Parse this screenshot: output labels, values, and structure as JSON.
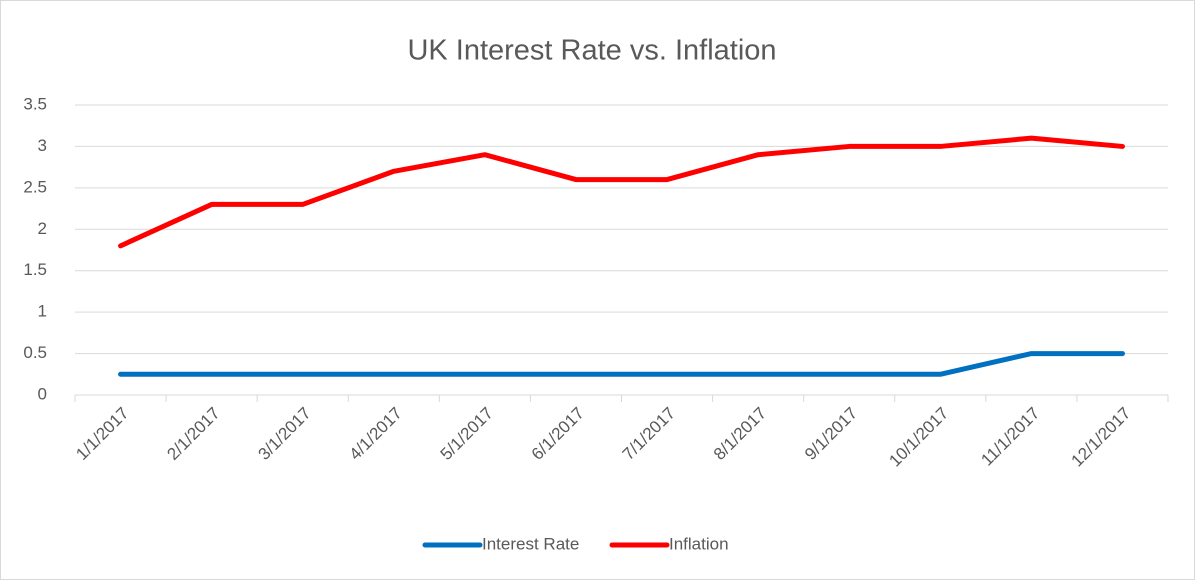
{
  "chart_data": {
    "type": "line",
    "title": "UK Interest Rate vs. Inflation",
    "categories": [
      "1/1/2017",
      "2/1/2017",
      "3/1/2017",
      "4/1/2017",
      "5/1/2017",
      "6/1/2017",
      "7/1/2017",
      "8/1/2017",
      "9/1/2017",
      "10/1/2017",
      "11/1/2017",
      "12/1/2017"
    ],
    "series": [
      {
        "name": "Interest Rate",
        "color": "#0070c0",
        "values": [
          0.25,
          0.25,
          0.25,
          0.25,
          0.25,
          0.25,
          0.25,
          0.25,
          0.25,
          0.25,
          0.5,
          0.5
        ]
      },
      {
        "name": "Inflation",
        "color": "#ff0000",
        "values": [
          1.8,
          2.3,
          2.3,
          2.7,
          2.9,
          2.6,
          2.6,
          2.9,
          3.0,
          3.0,
          3.1,
          3.0
        ]
      }
    ],
    "ylim": [
      0,
      3.5
    ],
    "yticks": [
      0,
      0.5,
      1,
      1.5,
      2,
      2.5,
      3,
      3.5
    ],
    "grid": true,
    "legend": "bottom"
  }
}
